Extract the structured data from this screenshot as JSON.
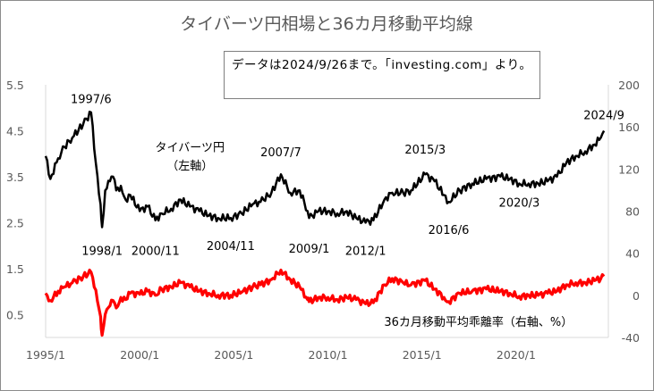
{
  "chart_data": {
    "title": "タイバーツ円相場と36カ月移動平均線",
    "type": "line",
    "note": "データは2024/9/26まで。「investing.com」より。",
    "x_ticks": [
      "1995/1",
      "2000/1",
      "2005/1",
      "2010/1",
      "2015/1",
      "2020/1"
    ],
    "left_axis": {
      "range": [
        0.0,
        5.5
      ],
      "ticks": [
        "0.5",
        "1.5",
        "2.5",
        "3.5",
        "4.5",
        "5.5"
      ]
    },
    "right_axis": {
      "range": [
        -40,
        200
      ],
      "ticks": [
        "-40",
        "0",
        "40",
        "80",
        "120",
        "160",
        "200"
      ]
    },
    "series": [
      {
        "name": "タイバーツ円（左軸）",
        "axis": "left",
        "color": "#000000",
        "points": [
          [
            "1995/1",
            3.95
          ],
          [
            "1995/4",
            3.45
          ],
          [
            "1995/9",
            3.9
          ],
          [
            "1996/1",
            4.15
          ],
          [
            "1996/6",
            4.35
          ],
          [
            "1997/1",
            4.65
          ],
          [
            "1997/6",
            4.9
          ],
          [
            "1997/9",
            3.8
          ],
          [
            "1997/12",
            2.9
          ],
          [
            "1998/1",
            2.4
          ],
          [
            "1998/3",
            3.2
          ],
          [
            "1998/6",
            3.4
          ],
          [
            "1998/8",
            3.5
          ],
          [
            "1998/10",
            3.2
          ],
          [
            "1999/1",
            3.3
          ],
          [
            "1999/4",
            3.0
          ],
          [
            "1999/7",
            3.1
          ],
          [
            "2000/1",
            2.75
          ],
          [
            "2000/6",
            2.85
          ],
          [
            "2000/11",
            2.55
          ],
          [
            "2001/3",
            2.7
          ],
          [
            "2001/9",
            2.8
          ],
          [
            "2002/3",
            3.0
          ],
          [
            "2002/9",
            2.85
          ],
          [
            "2003/3",
            2.75
          ],
          [
            "2003/9",
            2.65
          ],
          [
            "2004/3",
            2.6
          ],
          [
            "2004/11",
            2.6
          ],
          [
            "2005/6",
            2.7
          ],
          [
            "2006/1",
            2.9
          ],
          [
            "2006/6",
            2.95
          ],
          [
            "2007/1",
            3.15
          ],
          [
            "2007/7",
            3.55
          ],
          [
            "2008/1",
            3.15
          ],
          [
            "2008/7",
            3.2
          ],
          [
            "2008/12",
            2.75
          ],
          [
            "2009/1",
            2.6
          ],
          [
            "2009/7",
            2.75
          ],
          [
            "2010/1",
            2.75
          ],
          [
            "2010/7",
            2.7
          ],
          [
            "2011/1",
            2.75
          ],
          [
            "2011/7",
            2.6
          ],
          [
            "2012/1",
            2.5
          ],
          [
            "2012/6",
            2.55
          ],
          [
            "2013/1",
            3.0
          ],
          [
            "2013/6",
            3.15
          ],
          [
            "2014/1",
            3.15
          ],
          [
            "2014/6",
            3.2
          ],
          [
            "2015/3",
            3.55
          ],
          [
            "2015/9",
            3.4
          ],
          [
            "2016/3",
            3.1
          ],
          [
            "2016/6",
            2.95
          ],
          [
            "2017/1",
            3.2
          ],
          [
            "2017/9",
            3.35
          ],
          [
            "2018/6",
            3.45
          ],
          [
            "2019/3",
            3.5
          ],
          [
            "2019/9",
            3.45
          ],
          [
            "2020/3",
            3.35
          ],
          [
            "2020/9",
            3.35
          ],
          [
            "2021/3",
            3.35
          ],
          [
            "2021/9",
            3.4
          ],
          [
            "2022/3",
            3.5
          ],
          [
            "2022/9",
            3.8
          ],
          [
            "2023/3",
            3.95
          ],
          [
            "2023/9",
            4.05
          ],
          [
            "2024/3",
            4.2
          ],
          [
            "2024/7",
            4.35
          ],
          [
            "2024/9",
            4.5
          ]
        ]
      },
      {
        "name": "36カ月移動平均乖離率（右軸、%）",
        "axis": "right",
        "color": "#ff0000",
        "points": [
          [
            "1995/1",
            2
          ],
          [
            "1995/4",
            -5
          ],
          [
            "1995/9",
            4
          ],
          [
            "1996/1",
            8
          ],
          [
            "1996/6",
            12
          ],
          [
            "1997/1",
            18
          ],
          [
            "1997/6",
            22
          ],
          [
            "1997/9",
            5
          ],
          [
            "1997/12",
            -20
          ],
          [
            "1998/1",
            -38
          ],
          [
            "1998/3",
            -18
          ],
          [
            "1998/6",
            -10
          ],
          [
            "1998/8",
            -5
          ],
          [
            "1998/10",
            -12
          ],
          [
            "1999/1",
            -2
          ],
          [
            "1999/4",
            -4
          ],
          [
            "1999/7",
            2
          ],
          [
            "2000/1",
            1
          ],
          [
            "2000/6",
            4
          ],
          [
            "2000/11",
            0
          ],
          [
            "2001/3",
            6
          ],
          [
            "2001/9",
            8
          ],
          [
            "2002/3",
            12
          ],
          [
            "2002/9",
            8
          ],
          [
            "2003/3",
            4
          ],
          [
            "2003/9",
            2
          ],
          [
            "2004/3",
            0
          ],
          [
            "2004/11",
            0
          ],
          [
            "2005/6",
            3
          ],
          [
            "2006/1",
            8
          ],
          [
            "2006/6",
            10
          ],
          [
            "2007/1",
            15
          ],
          [
            "2007/7",
            24
          ],
          [
            "2008/1",
            15
          ],
          [
            "2008/7",
            8
          ],
          [
            "2008/12",
            -4
          ],
          [
            "2009/1",
            -6
          ],
          [
            "2009/7",
            -2
          ],
          [
            "2010/1",
            -2
          ],
          [
            "2010/7",
            -4
          ],
          [
            "2011/1",
            -2
          ],
          [
            "2011/7",
            -4
          ],
          [
            "2012/1",
            -8
          ],
          [
            "2012/6",
            -7
          ],
          [
            "2013/1",
            10
          ],
          [
            "2013/6",
            16
          ],
          [
            "2014/1",
            12
          ],
          [
            "2014/6",
            10
          ],
          [
            "2015/3",
            14
          ],
          [
            "2015/9",
            6
          ],
          [
            "2016/3",
            -2
          ],
          [
            "2016/6",
            -6
          ],
          [
            "2017/1",
            2
          ],
          [
            "2017/9",
            4
          ],
          [
            "2018/6",
            6
          ],
          [
            "2019/3",
            4
          ],
          [
            "2019/9",
            2
          ],
          [
            "2020/3",
            -1
          ],
          [
            "2020/9",
            0
          ],
          [
            "2021/3",
            0
          ],
          [
            "2021/9",
            2
          ],
          [
            "2022/3",
            4
          ],
          [
            "2022/9",
            10
          ],
          [
            "2023/3",
            12
          ],
          [
            "2023/9",
            12
          ],
          [
            "2024/3",
            14
          ],
          [
            "2024/7",
            16
          ],
          [
            "2024/9",
            18
          ]
        ]
      }
    ],
    "annotations": [
      {
        "text": "1997/6",
        "at": [
          "1997/6",
          5.1
        ]
      },
      {
        "text": "1998/1",
        "at": [
          "1998/1",
          1.8
        ]
      },
      {
        "text": "2000/11",
        "at": [
          "2000/11",
          1.8
        ]
      },
      {
        "text": "2004/11",
        "at": [
          "2004/11",
          1.9
        ]
      },
      {
        "text": "2007/7",
        "at": [
          "2007/7",
          3.95
        ]
      },
      {
        "text": "2009/1",
        "at": [
          "2009/1",
          1.85
        ]
      },
      {
        "text": "2012/1",
        "at": [
          "2012/1",
          1.8
        ]
      },
      {
        "text": "2015/3",
        "at": [
          "2015/3",
          4.0
        ]
      },
      {
        "text": "2016/6",
        "at": [
          "2016/6",
          2.25
        ]
      },
      {
        "text": "2020/3",
        "at": [
          "2020/3",
          2.85
        ]
      },
      {
        "text": "2024/9",
        "at": [
          "2024/9",
          4.75
        ]
      },
      {
        "text": "タイバーツ円",
        "at": [
          "2002/9",
          4.05
        ]
      },
      {
        "text": "（左軸）",
        "at": [
          "2002/9",
          3.65
        ]
      },
      {
        "text": "36カ月移動平均乖離率（右軸、%）",
        "at": [
          "2018/1",
          0.25
        ]
      }
    ],
    "grid": false,
    "legend": "none"
  }
}
